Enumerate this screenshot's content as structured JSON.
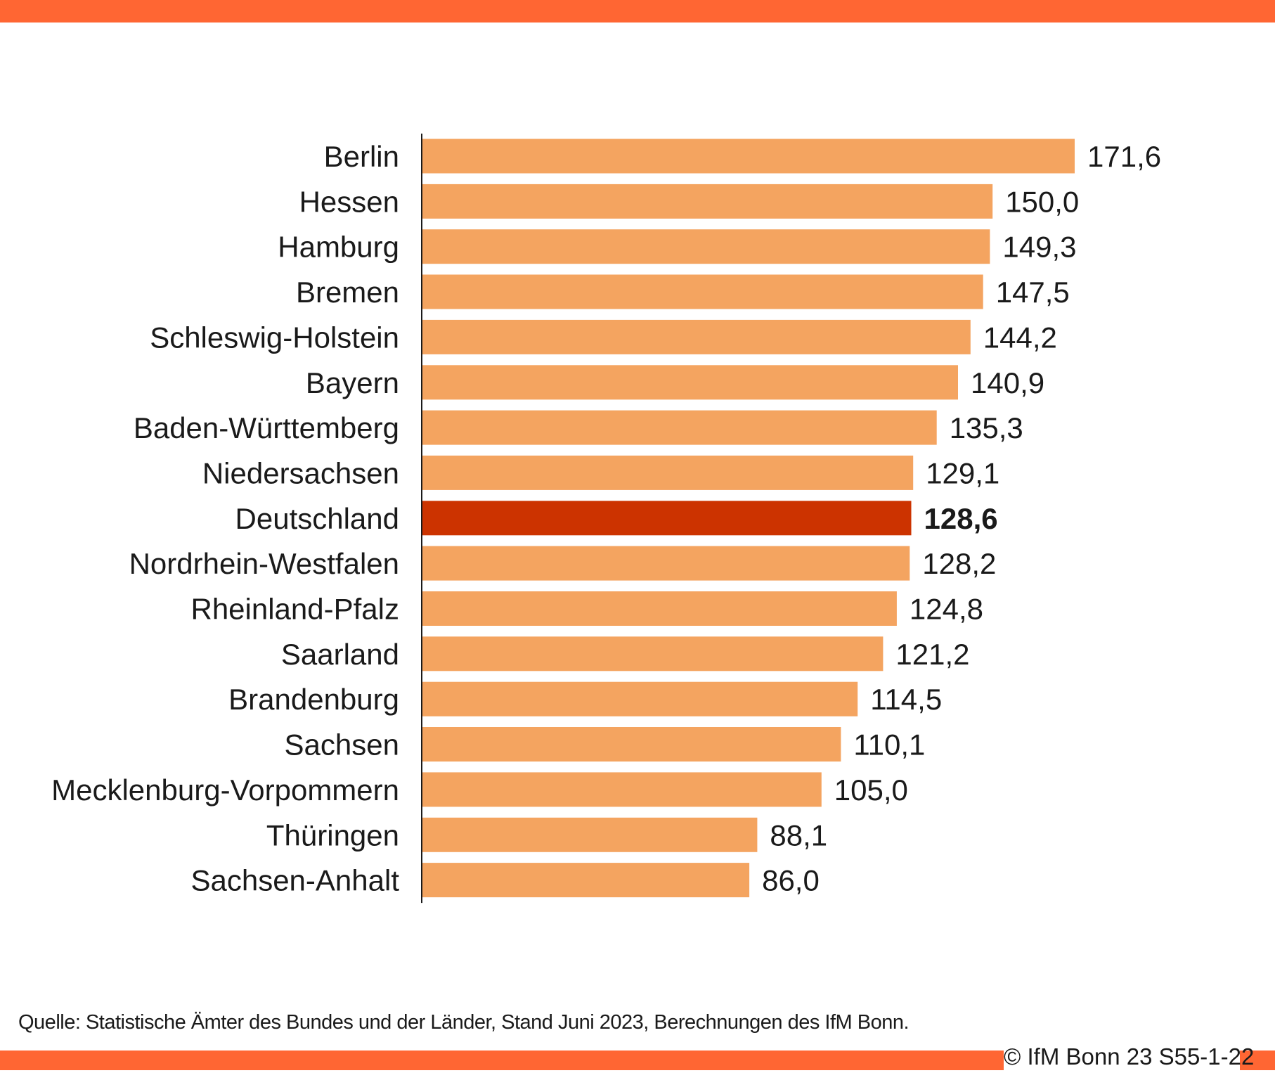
{
  "chart_data": {
    "type": "bar",
    "orientation": "horizontal",
    "categories": [
      "Berlin",
      "Hessen",
      "Hamburg",
      "Bremen",
      "Schleswig-Holstein",
      "Bayern",
      "Baden-Württemberg",
      "Niedersachsen",
      "Deutschland",
      "Nordrhein-Westfalen",
      "Rheinland-Pfalz",
      "Saarland",
      "Brandenburg",
      "Sachsen",
      "Mecklenburg-Vorpommern",
      "Thüringen",
      "Sachsen-Anhalt"
    ],
    "values": [
      171.6,
      150.0,
      149.3,
      147.5,
      144.2,
      140.9,
      135.3,
      129.1,
      128.6,
      128.2,
      124.8,
      121.2,
      114.5,
      110.1,
      105.0,
      88.1,
      86.0
    ],
    "value_labels": [
      "171,6",
      "150,0",
      "149,3",
      "147,5",
      "144,2",
      "140,9",
      "135,3",
      "129,1",
      "128,6",
      "128,2",
      "124,8",
      "121,2",
      "114,5",
      "110,1",
      "105,0",
      "88,1",
      "86,0"
    ],
    "highlight_category": "Deutschland",
    "xlim": [
      0,
      171.6
    ],
    "grid": false,
    "legend": "none",
    "colors": {
      "bar": "#f4a460",
      "highlight": "#cc3300",
      "band": "#ff6633"
    }
  },
  "footer": {
    "source": "Quelle: Statistische Ämter des Bundes und der Länder, Stand Juni 2023, Berechnungen des IfM Bonn.",
    "copyright": "© IfM  Bonn 23 S55-1-22"
  }
}
